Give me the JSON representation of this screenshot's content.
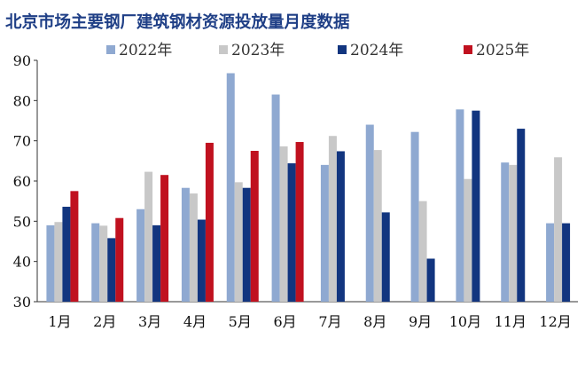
{
  "chart_data": {
    "type": "bar",
    "title": "北京市场主要钢厂建筑钢材资源投放量月度数据",
    "xlabel": "",
    "ylabel": "",
    "ylim": [
      30,
      90
    ],
    "yticks": [
      30,
      40,
      50,
      60,
      70,
      80,
      90
    ],
    "grid": false,
    "legend_position": "top",
    "categories": [
      "1月",
      "2月",
      "3月",
      "4月",
      "5月",
      "6月",
      "7月",
      "8月",
      "9月",
      "10月",
      "11月",
      "12月"
    ],
    "series": [
      {
        "name": "2022年",
        "color": "#8fa9d1",
        "values": [
          49,
          49.5,
          53,
          58.3,
          86.8,
          81.5,
          64,
          74,
          72.2,
          77.8,
          64.6,
          49.5
        ]
      },
      {
        "name": "2023年",
        "color": "#c8c8c8",
        "values": [
          49.8,
          48.9,
          62.3,
          56.9,
          59.7,
          68.6,
          71.2,
          67.7,
          55,
          60.5,
          64,
          65.9
        ]
      },
      {
        "name": "2024年",
        "color": "#12357f",
        "values": [
          53.6,
          45.8,
          49,
          50.4,
          58.3,
          64.4,
          67.4,
          52.2,
          40.7,
          77.5,
          73,
          49.5
        ]
      },
      {
        "name": "2025年",
        "color": "#c0111f",
        "values": [
          57.5,
          50.8,
          61.5,
          69.5,
          67.5,
          69.7,
          null,
          null,
          null,
          null,
          null,
          null
        ]
      }
    ]
  }
}
